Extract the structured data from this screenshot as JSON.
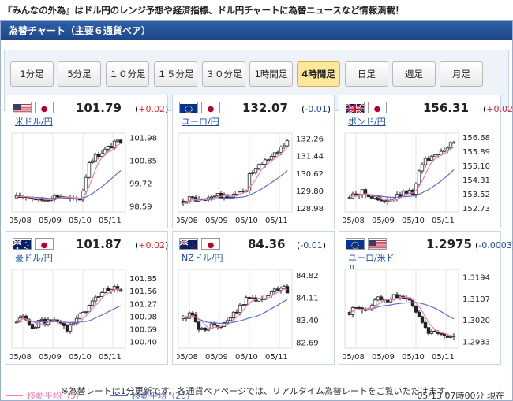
{
  "headline": "『みんなの外為』はドル円のレンジ予想や経済指標、ドル円チャートに為替ニュースなど情報満載！",
  "title": "為替チャート（主要６通貨ペア）",
  "timeframes": [
    {
      "label": "1分足",
      "active": false
    },
    {
      "label": "5分足",
      "active": false
    },
    {
      "label": "１０分足",
      "active": false
    },
    {
      "label": "１５分足",
      "active": false
    },
    {
      "label": "３０分足",
      "active": false
    },
    {
      "label": "1時間足",
      "active": false
    },
    {
      "label": "4時間足",
      "active": true
    },
    {
      "label": "日足",
      "active": false
    },
    {
      "label": "週足",
      "active": false
    },
    {
      "label": "月足",
      "active": false
    }
  ],
  "colors": {
    "ma5": "#f17fb1",
    "ma20": "#5b6dce",
    "candle": "#222222",
    "up": "#d8262f",
    "down": "#1a4da0"
  },
  "pairs": [
    {
      "name": "米ドル/円",
      "name_line2": "",
      "flags": [
        "us",
        "jp"
      ],
      "price": "101.79",
      "change": "+0.02",
      "dir": "up",
      "chart_data": {
        "type": "candlestick",
        "x_ticks": [
          "05/08",
          "05/09",
          "05/10",
          "05/11"
        ],
        "y_ticks": [
          "101.98",
          "100.85",
          "99.72",
          "98.59"
        ],
        "ylim": [
          98.3,
          102.2
        ]
      }
    },
    {
      "name": "ユーロ/円",
      "name_line2": "",
      "flags": [
        "eu",
        "jp"
      ],
      "price": "132.07",
      "change": "-0.01",
      "dir": "down",
      "chart_data": {
        "type": "candlestick",
        "x_ticks": [
          "05/08",
          "05/09",
          "05/10",
          "05/11"
        ],
        "y_ticks": [
          "132.26",
          "131.44",
          "130.62",
          "129.80",
          "128.98"
        ],
        "ylim": [
          128.8,
          132.5
        ]
      }
    },
    {
      "name": "ポンド/円",
      "name_line2": "",
      "flags": [
        "gb",
        "jp"
      ],
      "price": "156.31",
      "change": "+0.02",
      "dir": "up",
      "chart_data": {
        "type": "candlestick",
        "x_ticks": [
          "05/08",
          "05/09",
          "05/10",
          "05/11"
        ],
        "y_ticks": [
          "156.68",
          "155.89",
          "155.10",
          "154.31",
          "153.52",
          "152.73"
        ],
        "ylim": [
          152.5,
          156.9
        ]
      }
    },
    {
      "name": "豪ドル/円",
      "name_line2": "",
      "flags": [
        "au",
        "jp"
      ],
      "price": "101.87",
      "change": "+0.02",
      "dir": "up",
      "chart_data": {
        "type": "candlestick",
        "x_ticks": [
          "05/08",
          "05/09",
          "05/10",
          "05/11"
        ],
        "y_ticks": [
          "101.85",
          "101.56",
          "101.27",
          "100.98",
          "100.69",
          "100.40"
        ],
        "ylim": [
          100.25,
          102.05
        ]
      }
    },
    {
      "name": "NZドル/円",
      "name_line2": "",
      "flags": [
        "nz",
        "jp"
      ],
      "price": "84.36",
      "change": "-0.01",
      "dir": "down",
      "chart_data": {
        "type": "candlestick",
        "x_ticks": [
          "05/08",
          "05/09",
          "05/10",
          "05/11"
        ],
        "y_ticks": [
          "84.82",
          "84.11",
          "83.40",
          "82.69"
        ],
        "ylim": [
          82.5,
          85.0
        ]
      }
    },
    {
      "name": "ユーロ/米ド",
      "name_line2": "ル",
      "flags": [
        "eu",
        "us"
      ],
      "price": "1.2975",
      "change": "-0.0003",
      "dir": "down",
      "chart_data": {
        "type": "candlestick",
        "x_ticks": [
          "05/08",
          "05/09",
          "05/10",
          "05/11"
        ],
        "y_ticks": [
          "1.3194",
          "1.3107",
          "1.3020",
          "1.2933"
        ],
        "ylim": [
          1.2905,
          1.3225
        ]
      }
    }
  ],
  "legend": {
    "ma5": "移動平均（5）",
    "ma20": "移動平均（20）"
  },
  "updated": "05/13 07時00分 現在",
  "notice": "※為替レートは1分更新です。各通貨ペアページでは、リアルタイム為替レートをご覧いただけます。"
}
